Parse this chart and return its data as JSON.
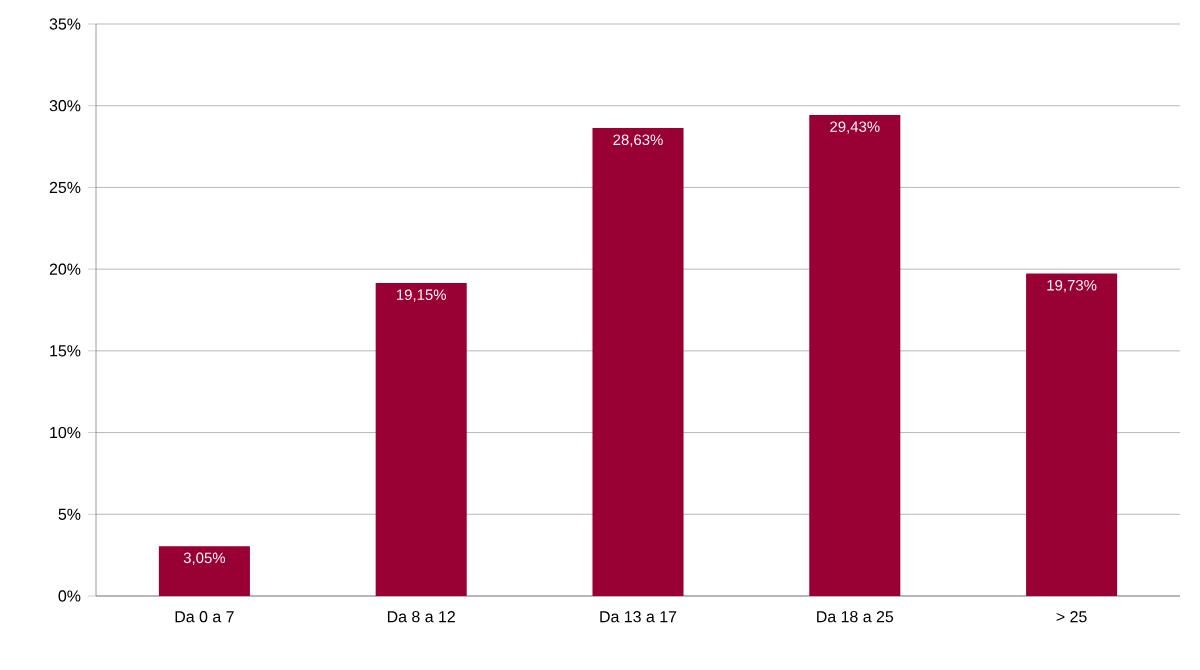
{
  "chart_data": {
    "type": "bar",
    "categories": [
      "Da 0 a 7",
      "Da 8 a 12",
      "Da 13 a 17",
      "Da 18 a 25",
      "> 25"
    ],
    "values": [
      3.05,
      19.15,
      28.63,
      29.43,
      19.73
    ],
    "value_labels": [
      "3,05%",
      "19,15%",
      "28,63%",
      "29,43%",
      "19,73%"
    ],
    "color": "#990033",
    "ylim": [
      0,
      35
    ],
    "yticks": [
      {
        "value": 0,
        "label": "0%"
      },
      {
        "value": 5,
        "label": "5%"
      },
      {
        "value": 10,
        "label": "10%"
      },
      {
        "value": 15,
        "label": "15%"
      },
      {
        "value": 20,
        "label": "20%"
      },
      {
        "value": 25,
        "label": "25%"
      },
      {
        "value": 30,
        "label": "30%"
      },
      {
        "value": 35,
        "label": "35%"
      }
    ],
    "grid": "y"
  }
}
